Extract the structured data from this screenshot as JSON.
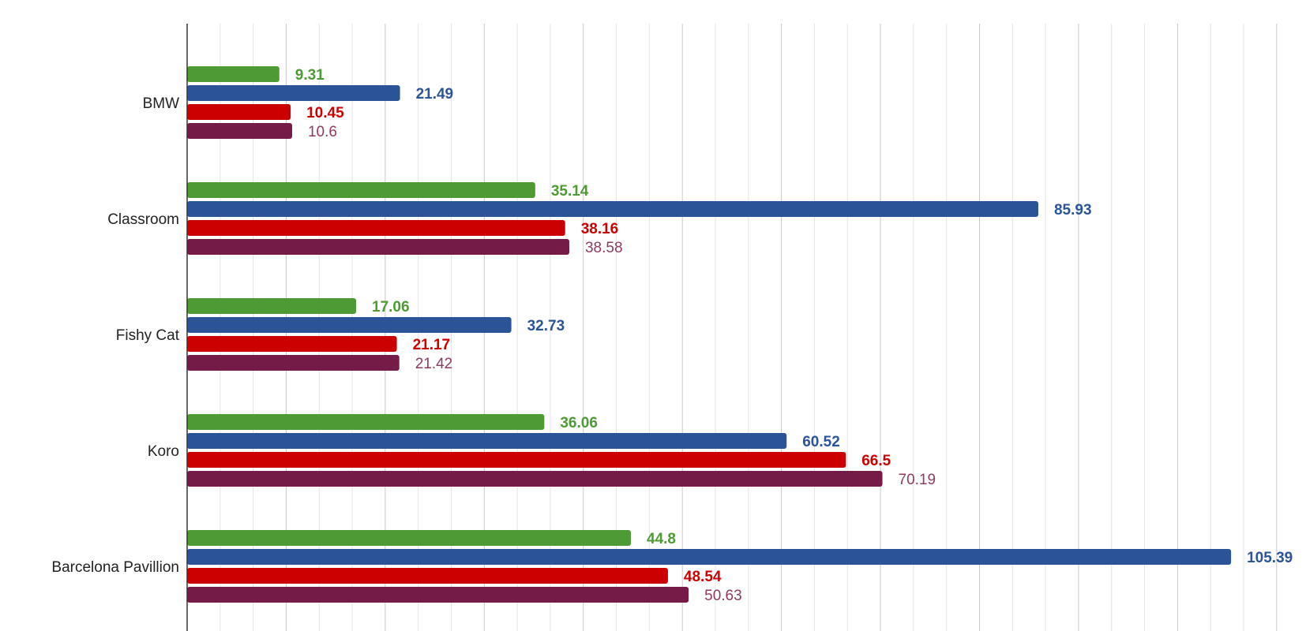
{
  "chart_data": {
    "type": "bar",
    "orientation": "horizontal",
    "categories": [
      "BMW",
      "Classroom",
      "Fishy Cat",
      "Koro",
      "Barcelona Pavillion"
    ],
    "series": [
      {
        "color": "#4e9a34",
        "label_color": "#4e9a34",
        "label_bold": true,
        "values": [
          9.31,
          35.14,
          17.06,
          36.06,
          44.8
        ]
      },
      {
        "color": "#2b5497",
        "label_color": "#2b5497",
        "label_bold": true,
        "values": [
          21.49,
          85.93,
          32.73,
          60.52,
          105.39
        ]
      },
      {
        "color": "#cc0000",
        "label_color": "#cc0000",
        "label_bold": true,
        "values": [
          10.45,
          38.16,
          21.17,
          66.5,
          48.54
        ]
      },
      {
        "color": "#741b47",
        "label_color": "#8e3b63",
        "label_bold": false,
        "values": [
          10.6,
          38.58,
          21.42,
          70.19,
          50.63
        ]
      }
    ],
    "xlim": [
      0,
      110
    ],
    "grid": true,
    "major_grid_step": 10,
    "minor_grid_step": 3.333,
    "legend": "none"
  }
}
